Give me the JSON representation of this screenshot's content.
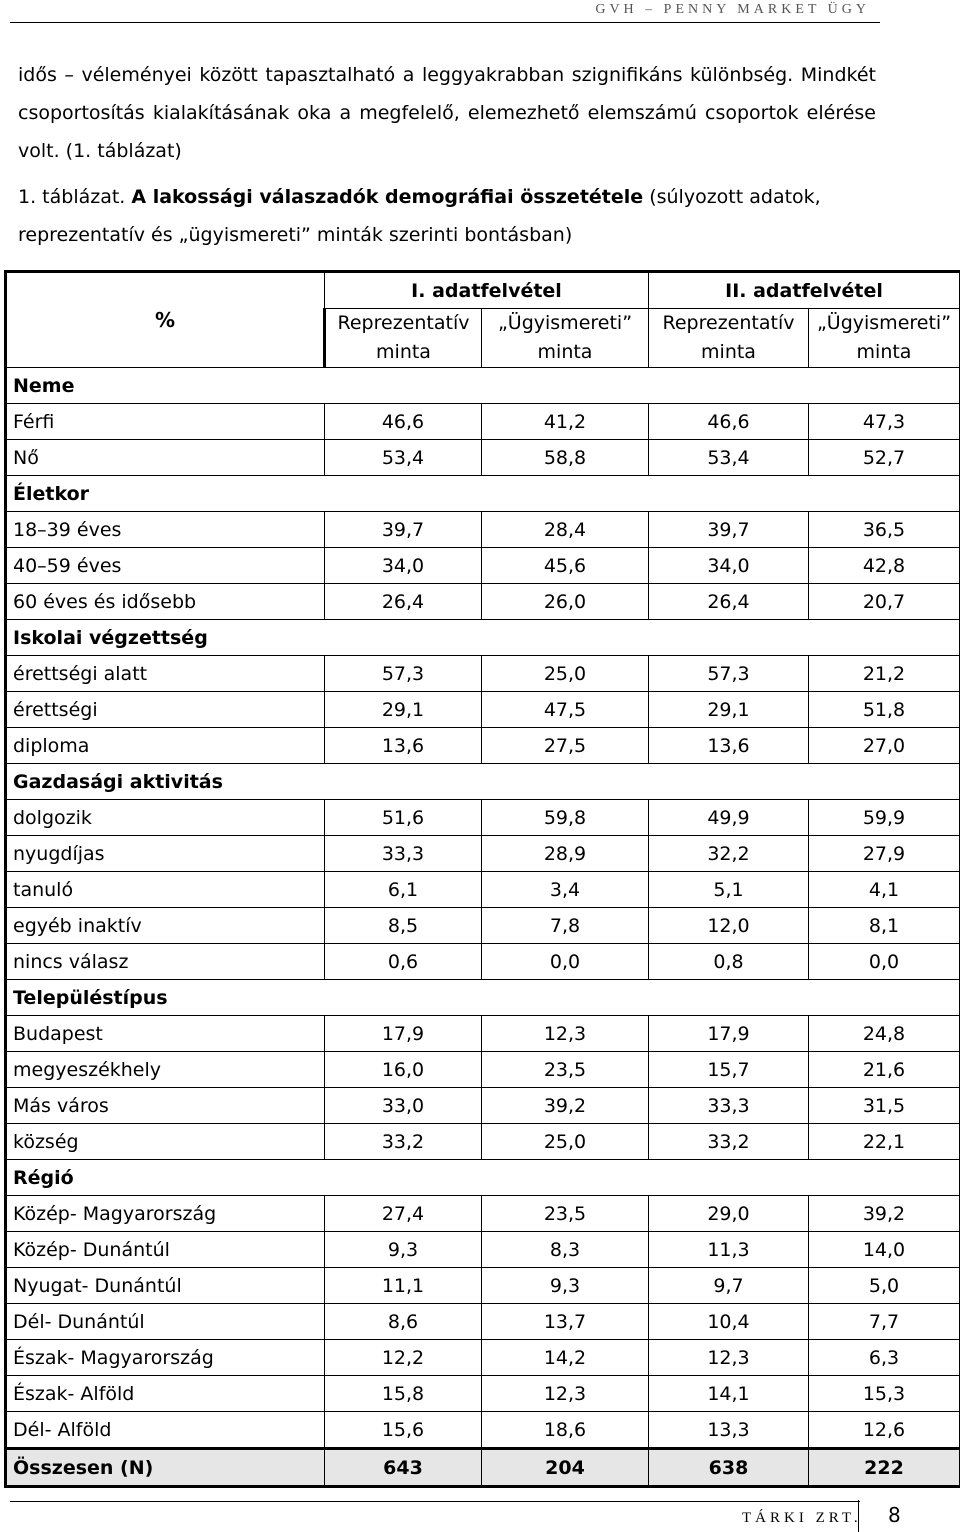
{
  "header": {
    "running_title": "GVH – PENNY MARKET ÜGY"
  },
  "intro": "idős – véleményei között tapasztalható a leggyakrabban szignifikáns különbség. Mindkét csoportosítás kialakításának oka a megfelelő, elemezhető elemszámú csoportok elérése volt. (1. táblázat)",
  "caption": {
    "prefix": "1. táblázat.",
    "title": "A lakossági válaszadók demográfiai összetétele",
    "rest": "(súlyozott adatok, reprezentatív és „ügyismereti” minták szerinti bontásban)"
  },
  "table": {
    "corner": "%",
    "survey1": "I. adatfelvétel",
    "survey2": "II. adatfelvétel",
    "col_rep": "Reprezentatív minta",
    "col_ugy": "„Ügyismereti” minta",
    "groups": [
      {
        "name": "Neme",
        "rows": [
          {
            "label": "Férfi",
            "v": [
              "46,6",
              "41,2",
              "46,6",
              "47,3"
            ]
          },
          {
            "label": "Nő",
            "v": [
              "53,4",
              "58,8",
              "53,4",
              "52,7"
            ]
          }
        ]
      },
      {
        "name": "Életkor",
        "rows": [
          {
            "label": "18–39 éves",
            "v": [
              "39,7",
              "28,4",
              "39,7",
              "36,5"
            ]
          },
          {
            "label": "40–59 éves",
            "v": [
              "34,0",
              "45,6",
              "34,0",
              "42,8"
            ]
          },
          {
            "label": "60 éves és idősebb",
            "v": [
              "26,4",
              "26,0",
              "26,4",
              "20,7"
            ]
          }
        ]
      },
      {
        "name": "Iskolai végzettség",
        "rows": [
          {
            "label": "érettségi alatt",
            "v": [
              "57,3",
              "25,0",
              "57,3",
              "21,2"
            ]
          },
          {
            "label": "érettségi",
            "v": [
              "29,1",
              "47,5",
              "29,1",
              "51,8"
            ]
          },
          {
            "label": "diploma",
            "v": [
              "13,6",
              "27,5",
              "13,6",
              "27,0"
            ]
          }
        ]
      },
      {
        "name": "Gazdasági aktivitás",
        "rows": [
          {
            "label": "dolgozik",
            "v": [
              "51,6",
              "59,8",
              "49,9",
              "59,9"
            ]
          },
          {
            "label": "nyugdíjas",
            "v": [
              "33,3",
              "28,9",
              "32,2",
              "27,9"
            ]
          },
          {
            "label": "tanuló",
            "v": [
              "6,1",
              "3,4",
              "5,1",
              "4,1"
            ]
          },
          {
            "label": "egyéb inaktív",
            "v": [
              "8,5",
              "7,8",
              "12,0",
              "8,1"
            ]
          },
          {
            "label": "nincs válasz",
            "v": [
              "0,6",
              "0,0",
              "0,8",
              "0,0"
            ]
          }
        ]
      },
      {
        "name": "Településtípus",
        "rows": [
          {
            "label": "Budapest",
            "v": [
              "17,9",
              "12,3",
              "17,9",
              "24,8"
            ]
          },
          {
            "label": "megyeszékhely",
            "v": [
              "16,0",
              "23,5",
              "15,7",
              "21,6"
            ]
          },
          {
            "label": "Más város",
            "v": [
              "33,0",
              "39,2",
              "33,3",
              "31,5"
            ]
          },
          {
            "label": "község",
            "v": [
              "33,2",
              "25,0",
              "33,2",
              "22,1"
            ]
          }
        ]
      },
      {
        "name": "Régió",
        "rows": [
          {
            "label": "Közép- Magyarország",
            "v": [
              "27,4",
              "23,5",
              "29,0",
              "39,2"
            ]
          },
          {
            "label": "Közép- Dunántúl",
            "v": [
              "9,3",
              "8,3",
              "11,3",
              "14,0"
            ]
          },
          {
            "label": "Nyugat- Dunántúl",
            "v": [
              "11,1",
              "9,3",
              "9,7",
              "5,0"
            ]
          },
          {
            "label": "Dél- Dunántúl",
            "v": [
              "8,6",
              "13,7",
              "10,4",
              "7,7"
            ]
          },
          {
            "label": "Észak- Magyarország",
            "v": [
              "12,2",
              "14,2",
              "12,3",
              "6,3"
            ]
          },
          {
            "label": "Észak- Alföld",
            "v": [
              "15,8",
              "12,3",
              "14,1",
              "15,3"
            ]
          },
          {
            "label": "Dél- Alföld",
            "v": [
              "15,6",
              "18,6",
              "13,3",
              "12,6"
            ]
          }
        ]
      }
    ],
    "total": {
      "label": "Összesen (N)",
      "v": [
        "643",
        "204",
        "638",
        "222"
      ]
    }
  },
  "footer": {
    "org": "TÁRKI ZRT.",
    "page": "8"
  }
}
